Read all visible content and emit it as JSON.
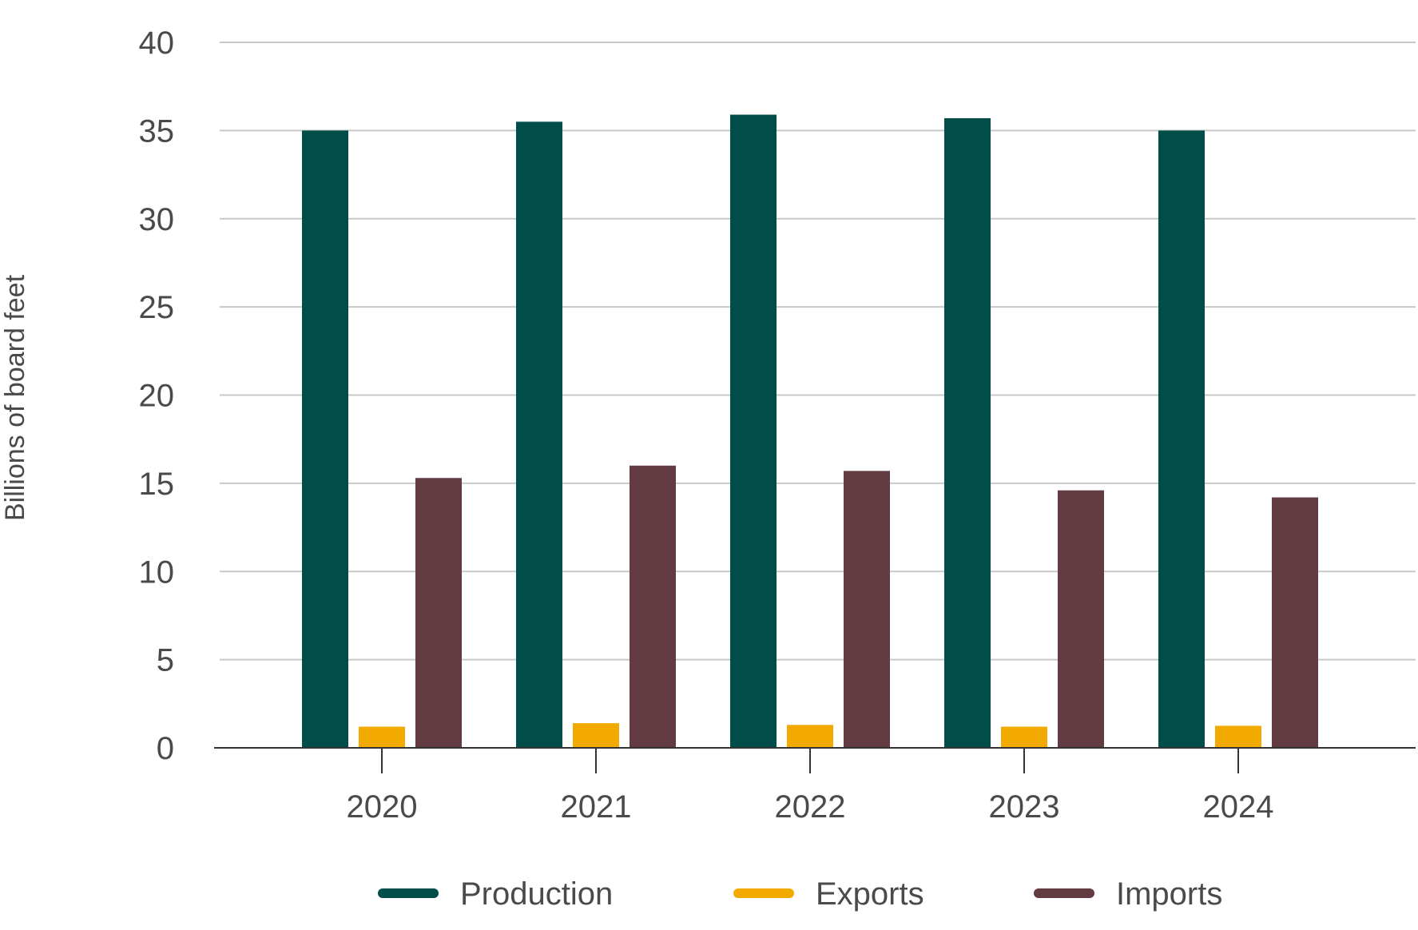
{
  "chart_data": {
    "type": "bar",
    "ylabel": "Billions of board feet",
    "xlabel": "",
    "title": "",
    "ylim": [
      0,
      40
    ],
    "yticks": [
      0,
      5,
      10,
      15,
      20,
      25,
      30,
      35,
      40
    ],
    "categories": [
      "2020",
      "2021",
      "2022",
      "2023",
      "2024"
    ],
    "series": [
      {
        "name": "Production",
        "color": "#004d4a",
        "values": [
          35.0,
          35.5,
          35.9,
          35.7,
          35.0
        ]
      },
      {
        "name": "Exports",
        "color": "#f2aa00",
        "values": [
          1.2,
          1.4,
          1.3,
          1.2,
          1.25
        ]
      },
      {
        "name": "Imports",
        "color": "#633c43",
        "values": [
          15.3,
          16.0,
          15.7,
          14.6,
          14.2
        ]
      }
    ],
    "grid": true,
    "legend_position": "bottom"
  }
}
